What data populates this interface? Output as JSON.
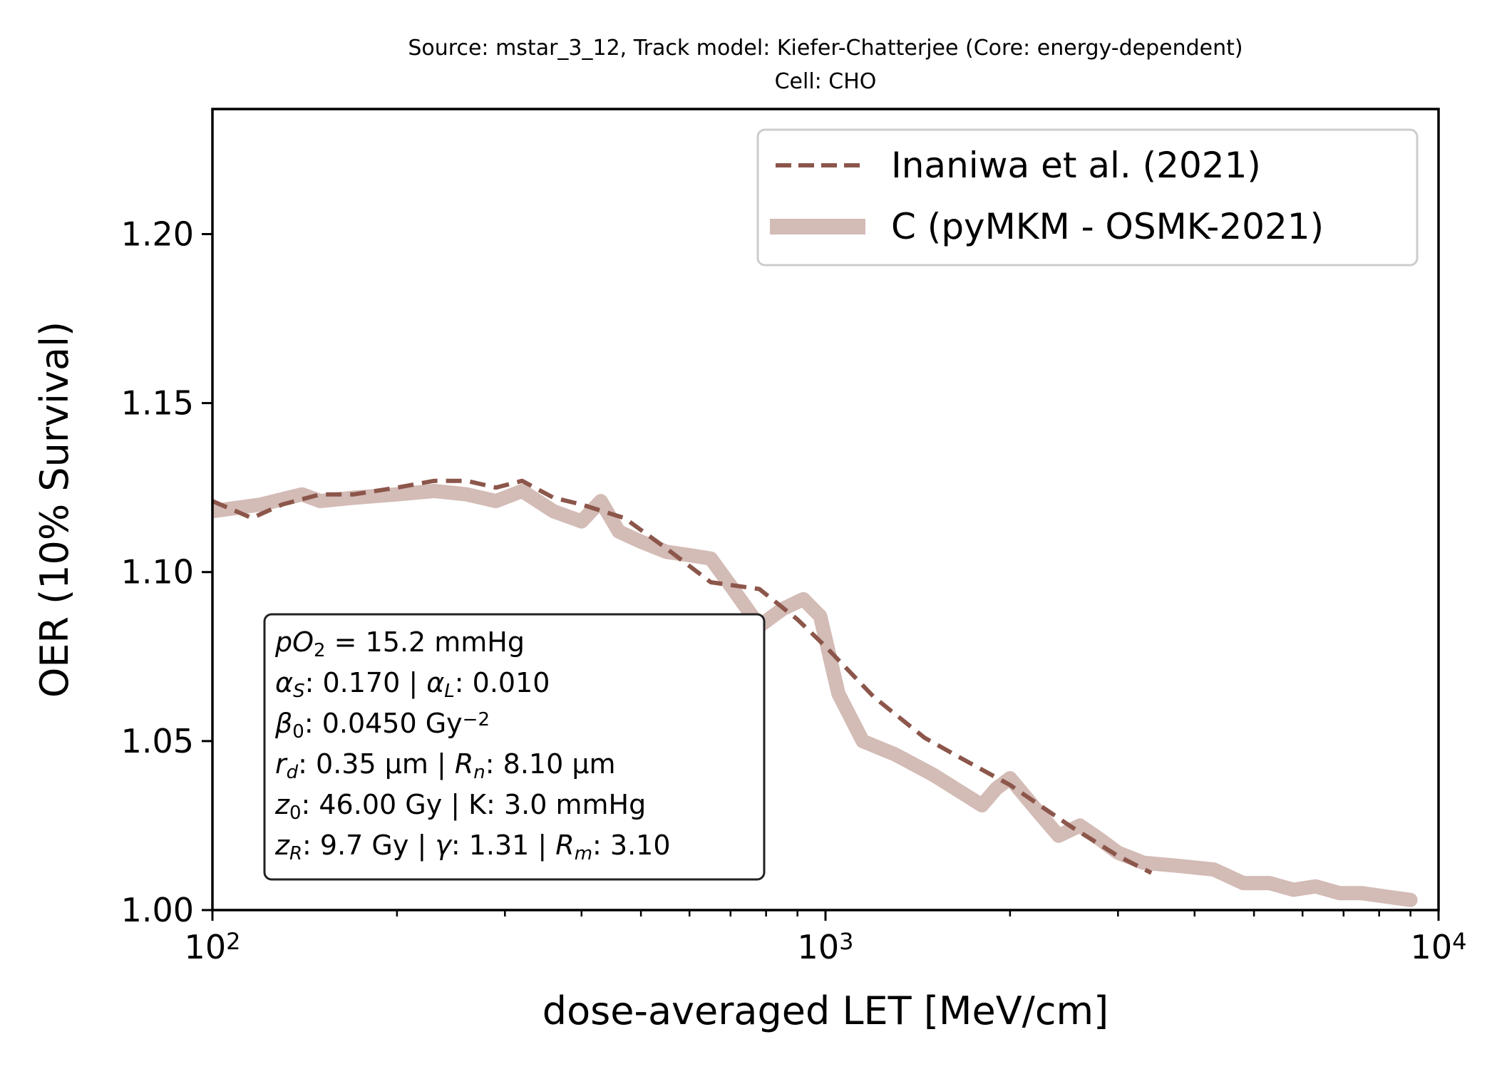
{
  "chart_data": {
    "type": "line",
    "title": "Source: mstar_3_12, Track model: Kiefer-Chatterjee (Core: energy-dependent)",
    "subtitle": "Cell: CHO",
    "xlabel": "dose-averaged LET [MeV/cm]",
    "ylabel": "OER (10% Survival)",
    "xscale": "log",
    "xlim": [
      100,
      10000
    ],
    "ylim": [
      1.0,
      1.237
    ],
    "grid": false,
    "legend_position": "top-right",
    "x_ticks": [
      {
        "value": 100,
        "base": "10",
        "exp": "2"
      },
      {
        "value": 1000,
        "base": "10",
        "exp": "3"
      },
      {
        "value": 10000,
        "base": "10",
        "exp": "4"
      }
    ],
    "y_ticks": [
      {
        "value": 1.0,
        "label": "1.00"
      },
      {
        "value": 1.05,
        "label": "1.05"
      },
      {
        "value": 1.1,
        "label": "1.10"
      },
      {
        "value": 1.15,
        "label": "1.15"
      },
      {
        "value": 1.2,
        "label": "1.20"
      }
    ],
    "series": [
      {
        "name": "Inaniwa et al. (2021)",
        "style": "dashed",
        "color": "#8c564b",
        "x": [
          100,
          116,
          130,
          150,
          170,
          200,
          230,
          260,
          290,
          320,
          360,
          400,
          470,
          550,
          650,
          780,
          900,
          1000,
          1200,
          1450,
          1700,
          2000,
          2500,
          3000,
          3400
        ],
        "y": [
          1.121,
          1.116,
          1.12,
          1.123,
          1.123,
          1.125,
          1.127,
          1.127,
          1.125,
          1.127,
          1.122,
          1.12,
          1.116,
          1.107,
          1.097,
          1.095,
          1.086,
          1.078,
          1.063,
          1.051,
          1.044,
          1.037,
          1.025,
          1.016,
          1.011
        ]
      },
      {
        "name": "C (pyMKM - OSMK-2021)",
        "style": "solid-thick",
        "color": "#d3bbb6",
        "x": [
          100,
          120,
          140,
          150,
          170,
          200,
          230,
          260,
          290,
          320,
          360,
          400,
          430,
          460,
          500,
          550,
          600,
          650,
          700,
          780,
          850,
          920,
          980,
          1050,
          1150,
          1300,
          1500,
          1800,
          1900,
          2000,
          2200,
          2400,
          2600,
          2800,
          3000,
          3300,
          3800,
          4300,
          4800,
          5300,
          5800,
          6300,
          6900,
          7500,
          8200,
          9000
        ],
        "y": [
          1.118,
          1.12,
          1.123,
          1.121,
          1.122,
          1.123,
          1.124,
          1.123,
          1.121,
          1.124,
          1.118,
          1.115,
          1.121,
          1.112,
          1.109,
          1.106,
          1.105,
          1.104,
          1.096,
          1.084,
          1.089,
          1.092,
          1.087,
          1.064,
          1.05,
          1.046,
          1.04,
          1.031,
          1.036,
          1.039,
          1.03,
          1.022,
          1.025,
          1.021,
          1.017,
          1.014,
          1.013,
          1.012,
          1.008,
          1.008,
          1.006,
          1.007,
          1.005,
          1.005,
          1.004,
          1.003
        ]
      }
    ],
    "annotation_lines": [
      [
        {
          "t": "pO",
          "s": "i"
        },
        {
          "t": "2",
          "s": "sub"
        },
        {
          "t": " = 15.2 mmHg"
        }
      ],
      [
        {
          "t": "α",
          "s": "i"
        },
        {
          "t": "S",
          "s": "isub"
        },
        {
          "t": ": 0.170 | "
        },
        {
          "t": "α",
          "s": "i"
        },
        {
          "t": "L",
          "s": "isub"
        },
        {
          "t": ": 0.010"
        }
      ],
      [
        {
          "t": "β",
          "s": "i"
        },
        {
          "t": "0",
          "s": "sub"
        },
        {
          "t": ": 0.0450 Gy"
        },
        {
          "t": "−2",
          "s": "sup"
        }
      ],
      [
        {
          "t": "r",
          "s": "i"
        },
        {
          "t": "d",
          "s": "isub"
        },
        {
          "t": ": 0.35 µm | "
        },
        {
          "t": "R",
          "s": "i"
        },
        {
          "t": "n",
          "s": "isub"
        },
        {
          "t": ": 8.10 µm"
        }
      ],
      [
        {
          "t": "z",
          "s": "i"
        },
        {
          "t": "0",
          "s": "sub"
        },
        {
          "t": ": 46.00 Gy | K: 3.0 mmHg"
        }
      ],
      [
        {
          "t": "z",
          "s": "i"
        },
        {
          "t": "R",
          "s": "isub"
        },
        {
          "t": ": 9.7 Gy | "
        },
        {
          "t": "γ",
          "s": "i"
        },
        {
          "t": ": 1.31 | "
        },
        {
          "t": "R",
          "s": "i"
        },
        {
          "t": "m",
          "s": "isub"
        },
        {
          "t": ": 3.10"
        }
      ]
    ]
  }
}
